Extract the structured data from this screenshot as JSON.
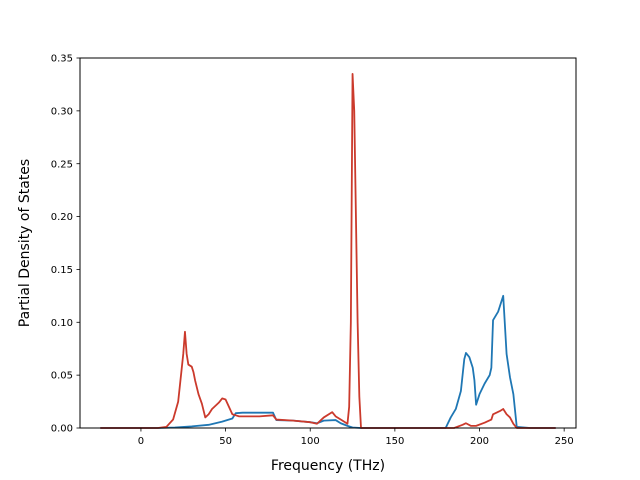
{
  "chart_data": {
    "type": "line",
    "xlabel": "Frequency (THz)",
    "ylabel": "Partial Density of States",
    "xlim": [
      -36,
      257
    ],
    "ylim": [
      0,
      0.35
    ],
    "xticks": [
      0,
      50,
      100,
      150,
      200,
      250
    ],
    "yticks": [
      0.0,
      0.05,
      0.1,
      0.15,
      0.2,
      0.25,
      0.3,
      0.35
    ],
    "xtick_labels": [
      "0",
      "50",
      "100",
      "150",
      "200",
      "250"
    ],
    "ytick_labels": [
      "0.00",
      "0.05",
      "0.10",
      "0.15",
      "0.20",
      "0.25",
      "0.30",
      "0.35"
    ],
    "grid": false,
    "series": [
      {
        "color": "#1f77b4",
        "points": [
          [
            -24,
            0
          ],
          [
            0,
            0
          ],
          [
            10,
            0
          ],
          [
            20,
            0.0005
          ],
          [
            30,
            0.0015
          ],
          [
            40,
            0.003
          ],
          [
            48,
            0.006
          ],
          [
            54,
            0.009
          ],
          [
            56,
            0.014
          ],
          [
            60,
            0.0145
          ],
          [
            70,
            0.0145
          ],
          [
            78,
            0.0145
          ],
          [
            80,
            0.0075
          ],
          [
            90,
            0.007
          ],
          [
            100,
            0.0055
          ],
          [
            104,
            0.0045
          ],
          [
            108,
            0.007
          ],
          [
            115,
            0.0075
          ],
          [
            118,
            0.0045
          ],
          [
            122,
            0.002
          ],
          [
            125,
            0.0005
          ],
          [
            130,
            0
          ],
          [
            150,
            0
          ],
          [
            180,
            0
          ],
          [
            183,
            0.01
          ],
          [
            186,
            0.018
          ],
          [
            189,
            0.035
          ],
          [
            191,
            0.065
          ],
          [
            192,
            0.071
          ],
          [
            194,
            0.067
          ],
          [
            196,
            0.057
          ],
          [
            197,
            0.045
          ],
          [
            198,
            0.022
          ],
          [
            200,
            0.032
          ],
          [
            203,
            0.042
          ],
          [
            206,
            0.05
          ],
          [
            207,
            0.057
          ],
          [
            208,
            0.102
          ],
          [
            211,
            0.11
          ],
          [
            213,
            0.12
          ],
          [
            214,
            0.125
          ],
          [
            216,
            0.07
          ],
          [
            218,
            0.048
          ],
          [
            220,
            0.032
          ],
          [
            222,
            0.001
          ],
          [
            230,
            0
          ],
          [
            245,
            0
          ]
        ]
      },
      {
        "color": "#cb3a2c",
        "points": [
          [
            -24,
            0
          ],
          [
            0,
            0
          ],
          [
            10,
            0
          ],
          [
            15,
            0.001
          ],
          [
            19,
            0.008
          ],
          [
            22,
            0.025
          ],
          [
            24,
            0.055
          ],
          [
            25,
            0.07
          ],
          [
            26,
            0.091
          ],
          [
            27,
            0.07
          ],
          [
            28,
            0.06
          ],
          [
            30,
            0.058
          ],
          [
            31,
            0.053
          ],
          [
            32,
            0.045
          ],
          [
            34,
            0.032
          ],
          [
            36,
            0.023
          ],
          [
            38,
            0.01
          ],
          [
            40,
            0.013
          ],
          [
            42,
            0.018
          ],
          [
            46,
            0.024
          ],
          [
            48,
            0.028
          ],
          [
            50,
            0.027
          ],
          [
            52,
            0.02
          ],
          [
            54,
            0.013
          ],
          [
            56,
            0.012
          ],
          [
            58,
            0.011
          ],
          [
            60,
            0.011
          ],
          [
            70,
            0.011
          ],
          [
            78,
            0.012
          ],
          [
            80,
            0.008
          ],
          [
            90,
            0.007
          ],
          [
            100,
            0.0055
          ],
          [
            104,
            0.004
          ],
          [
            108,
            0.01
          ],
          [
            113,
            0.015
          ],
          [
            115,
            0.011
          ],
          [
            118,
            0.008
          ],
          [
            122,
            0.004
          ],
          [
            123,
            0.02
          ],
          [
            124,
            0.1
          ],
          [
            125,
            0.335
          ],
          [
            126,
            0.3
          ],
          [
            128,
            0.1
          ],
          [
            129,
            0.03
          ],
          [
            130,
            0
          ],
          [
            150,
            0
          ],
          [
            185,
            0
          ],
          [
            190,
            0.003
          ],
          [
            192,
            0.0045
          ],
          [
            195,
            0.002
          ],
          [
            198,
            0.002
          ],
          [
            203,
            0.005
          ],
          [
            207,
            0.008
          ],
          [
            208,
            0.013
          ],
          [
            212,
            0.016
          ],
          [
            214,
            0.018
          ],
          [
            216,
            0.013
          ],
          [
            218,
            0.01
          ],
          [
            220,
            0.004
          ],
          [
            222,
            0
          ],
          [
            230,
            0
          ],
          [
            245,
            0
          ]
        ]
      }
    ]
  }
}
